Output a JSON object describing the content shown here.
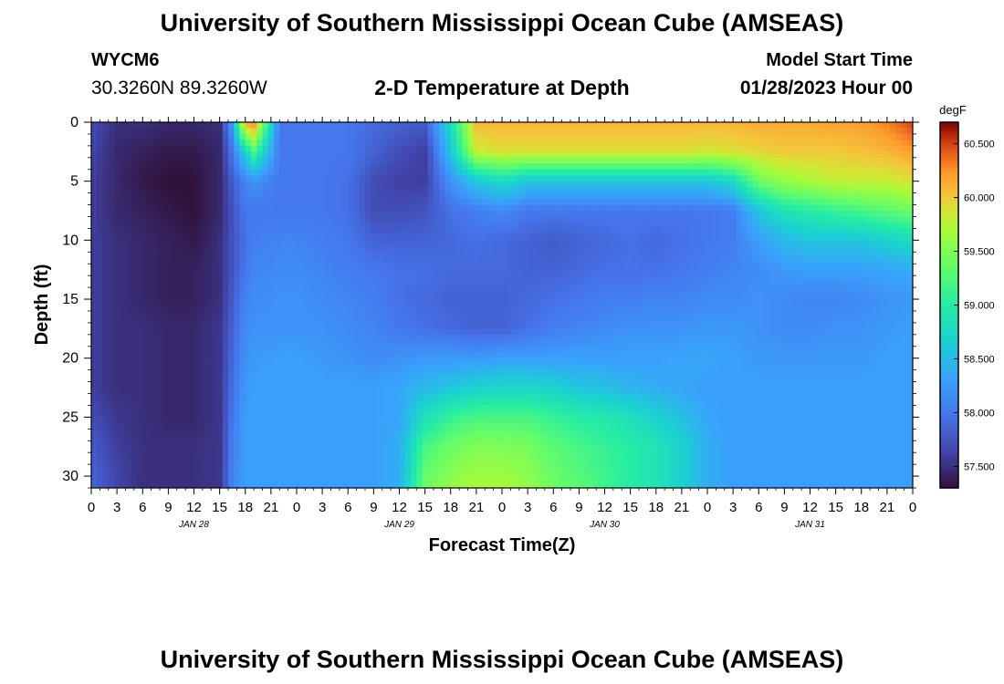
{
  "header": {
    "title": "University of Southern Mississippi Ocean Cube (AMSEAS)",
    "station_id": "WYCM6",
    "coordinates": "30.3260N  89.3260W",
    "plot_title": "2-D Temperature at Depth",
    "model_start_label": "Model Start Time",
    "model_start_value": "01/28/2023 Hour 00"
  },
  "footer": {
    "title": "University of Southern Mississippi Ocean Cube (AMSEAS)"
  },
  "chart_data": {
    "type": "heatmap",
    "title": "2-D Temperature at Depth",
    "xlabel": "Forecast Time(Z)",
    "ylabel": "Depth (ft)",
    "x_ticks": [
      "0",
      "3",
      "6",
      "9",
      "12",
      "15",
      "18",
      "21",
      "0",
      "3",
      "6",
      "9",
      "12",
      "15",
      "18",
      "21",
      "0",
      "3",
      "6",
      "9",
      "12",
      "15",
      "18",
      "21",
      "0",
      "3",
      "6",
      "9",
      "12",
      "15",
      "18",
      "21",
      "0"
    ],
    "x_range_hours": [
      0,
      96
    ],
    "day_labels": [
      "JAN 28",
      "JAN 29",
      "JAN 30",
      "JAN 31"
    ],
    "y_ticks": [
      0,
      5,
      10,
      15,
      20,
      25,
      30
    ],
    "y_range": [
      0,
      31
    ],
    "y_inverted": true,
    "colorbar": {
      "unit": "degF",
      "range": [
        57.3,
        60.7
      ],
      "ticks": [
        "57.500",
        "58.000",
        "58.500",
        "59.000",
        "59.500",
        "60.000",
        "60.500"
      ]
    },
    "depths_ft": [
      0,
      2.5,
      5,
      7.5,
      10,
      12.5,
      15,
      17.5,
      20,
      22.5,
      25,
      27.5,
      31
    ],
    "hours": [
      0,
      3,
      6,
      9,
      12,
      15,
      16.5,
      18,
      19,
      22,
      24,
      27,
      30,
      33,
      36,
      39,
      42,
      45,
      48,
      51,
      54,
      57,
      60,
      63,
      66,
      69,
      72,
      75,
      78,
      81,
      84,
      87,
      90,
      93,
      96
    ],
    "values": [
      [
        57.7,
        57.5,
        57.5,
        57.45,
        57.45,
        57.5,
        58.3,
        60.2,
        60.3,
        58.0,
        58.0,
        58.0,
        58.0,
        57.9,
        57.85,
        57.8,
        58.8,
        60.1,
        60.1,
        60.1,
        60.1,
        60.1,
        60.1,
        60.1,
        60.1,
        60.1,
        60.1,
        60.1,
        60.15,
        60.15,
        60.15,
        60.2,
        60.2,
        60.3,
        60.5
      ],
      [
        57.65,
        57.45,
        57.4,
        57.35,
        57.35,
        57.45,
        58.0,
        58.7,
        59.2,
        58.0,
        58.0,
        58.0,
        58.0,
        57.85,
        57.7,
        57.6,
        58.6,
        59.8,
        59.9,
        59.9,
        59.9,
        59.9,
        59.9,
        59.9,
        59.9,
        59.9,
        59.85,
        59.9,
        59.95,
        60.0,
        60.0,
        60.0,
        60.05,
        60.1,
        60.2
      ],
      [
        57.6,
        57.45,
        57.35,
        57.3,
        57.3,
        57.45,
        57.8,
        58.1,
        58.2,
        58.0,
        58.0,
        58.0,
        57.95,
        57.7,
        57.6,
        57.6,
        58.2,
        58.6,
        58.8,
        58.6,
        58.6,
        58.6,
        58.6,
        58.6,
        58.6,
        58.6,
        58.6,
        58.8,
        59.4,
        59.6,
        59.7,
        59.8,
        59.8,
        59.8,
        59.9
      ],
      [
        57.6,
        57.45,
        57.4,
        57.35,
        57.3,
        57.45,
        57.75,
        58.0,
        58.0,
        58.0,
        58.0,
        58.0,
        57.95,
        57.7,
        57.7,
        57.75,
        57.95,
        58.05,
        58.15,
        58.0,
        58.0,
        58.0,
        58.0,
        58.0,
        58.0,
        58.0,
        58.0,
        58.05,
        58.6,
        58.9,
        59.0,
        59.1,
        59.2,
        59.3,
        59.4
      ],
      [
        57.6,
        57.5,
        57.45,
        57.4,
        57.35,
        57.5,
        57.75,
        57.95,
        58.05,
        58.1,
        58.1,
        58.05,
        58.0,
        57.85,
        57.85,
        57.85,
        57.9,
        57.95,
        57.9,
        57.85,
        57.8,
        57.85,
        57.9,
        57.95,
        57.9,
        57.95,
        58.0,
        58.05,
        58.3,
        58.5,
        58.6,
        58.6,
        58.6,
        58.7,
        58.8
      ],
      [
        57.6,
        57.5,
        57.45,
        57.4,
        57.4,
        57.5,
        57.75,
        58.0,
        58.1,
        58.15,
        58.15,
        58.1,
        58.05,
        58.0,
        57.95,
        57.95,
        57.9,
        57.9,
        57.9,
        57.85,
        57.85,
        57.9,
        57.95,
        57.95,
        57.95,
        58.0,
        58.05,
        58.1,
        58.15,
        58.25,
        58.3,
        58.3,
        58.3,
        58.35,
        58.4
      ],
      [
        57.6,
        57.5,
        57.45,
        57.4,
        57.4,
        57.5,
        57.8,
        58.1,
        58.15,
        58.2,
        58.2,
        58.15,
        58.1,
        58.05,
        57.95,
        57.9,
        57.85,
        57.85,
        57.85,
        57.9,
        57.95,
        58.0,
        58.05,
        58.05,
        58.1,
        58.1,
        58.15,
        58.15,
        58.2,
        58.15,
        58.1,
        58.1,
        58.15,
        58.2,
        58.25
      ],
      [
        57.6,
        57.5,
        57.5,
        57.45,
        57.45,
        57.55,
        57.85,
        58.15,
        58.2,
        58.2,
        58.2,
        58.2,
        58.15,
        58.1,
        58.0,
        57.95,
        57.9,
        57.85,
        57.85,
        57.95,
        58.05,
        58.1,
        58.15,
        58.2,
        58.2,
        58.2,
        58.25,
        58.25,
        58.2,
        58.15,
        58.15,
        58.2,
        58.2,
        58.25,
        58.3
      ],
      [
        57.6,
        57.5,
        57.5,
        57.45,
        57.45,
        57.55,
        57.9,
        58.2,
        58.25,
        58.3,
        58.3,
        58.25,
        58.2,
        58.15,
        58.2,
        58.25,
        58.25,
        58.25,
        58.3,
        58.3,
        58.3,
        58.3,
        58.3,
        58.3,
        58.3,
        58.35,
        58.35,
        58.3,
        58.25,
        58.25,
        58.25,
        58.25,
        58.25,
        58.3,
        58.3
      ],
      [
        57.6,
        57.5,
        57.5,
        57.45,
        57.45,
        57.55,
        57.95,
        58.25,
        58.3,
        58.3,
        58.3,
        58.3,
        58.3,
        58.3,
        58.35,
        58.5,
        58.6,
        58.7,
        58.75,
        58.75,
        58.7,
        58.6,
        58.55,
        58.45,
        58.4,
        58.35,
        58.3,
        58.3,
        58.3,
        58.3,
        58.3,
        58.3,
        58.3,
        58.3,
        58.3
      ],
      [
        57.7,
        57.55,
        57.5,
        57.45,
        57.45,
        57.55,
        58.0,
        58.3,
        58.3,
        58.3,
        58.3,
        58.3,
        58.3,
        58.3,
        58.35,
        58.85,
        59.1,
        59.2,
        59.2,
        59.2,
        59.1,
        59.0,
        58.95,
        58.85,
        58.7,
        58.55,
        58.35,
        58.3,
        58.3,
        58.3,
        58.3,
        58.3,
        58.3,
        58.3,
        58.3
      ],
      [
        57.8,
        57.6,
        57.5,
        57.5,
        57.5,
        57.55,
        58.05,
        58.3,
        58.3,
        58.3,
        58.3,
        58.3,
        58.3,
        58.3,
        58.4,
        59.2,
        59.4,
        59.5,
        59.5,
        59.45,
        59.3,
        59.2,
        59.1,
        59.0,
        58.9,
        58.7,
        58.4,
        58.3,
        58.3,
        58.3,
        58.3,
        58.3,
        58.3,
        58.3,
        58.3
      ],
      [
        57.9,
        57.65,
        57.5,
        57.5,
        57.5,
        57.55,
        58.1,
        58.3,
        58.3,
        58.3,
        58.3,
        58.3,
        58.3,
        58.3,
        58.4,
        59.4,
        59.6,
        59.7,
        59.7,
        59.6,
        59.4,
        59.3,
        59.15,
        59.0,
        58.9,
        58.7,
        58.4,
        58.3,
        58.3,
        58.3,
        58.3,
        58.3,
        58.3,
        58.3,
        58.3
      ]
    ]
  }
}
